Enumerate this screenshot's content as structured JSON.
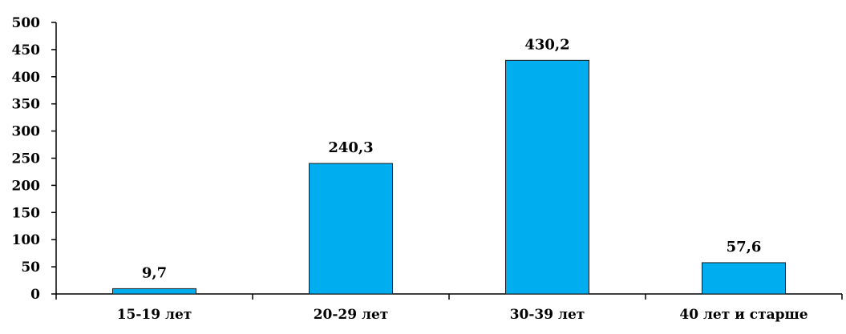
{
  "chart_data": {
    "type": "bar",
    "title": "",
    "xlabel": "",
    "ylabel": "",
    "categories": [
      "15-19 лет",
      "20-29 лет",
      "30-39 лет",
      "40 лет и старше"
    ],
    "values": [
      9.7,
      240.3,
      430.2,
      57.6
    ],
    "data_labels": [
      "9,7",
      "240,3",
      "430,2",
      "57,6"
    ],
    "ylim": [
      0,
      500
    ],
    "yticks": [
      0,
      50,
      100,
      150,
      200,
      250,
      300,
      350,
      400,
      450,
      500
    ],
    "grid": false,
    "legend": "none",
    "colors": {
      "bar_fill": "#00aeef",
      "bar_stroke": "#1a1a1a",
      "axis": "#000000"
    }
  }
}
